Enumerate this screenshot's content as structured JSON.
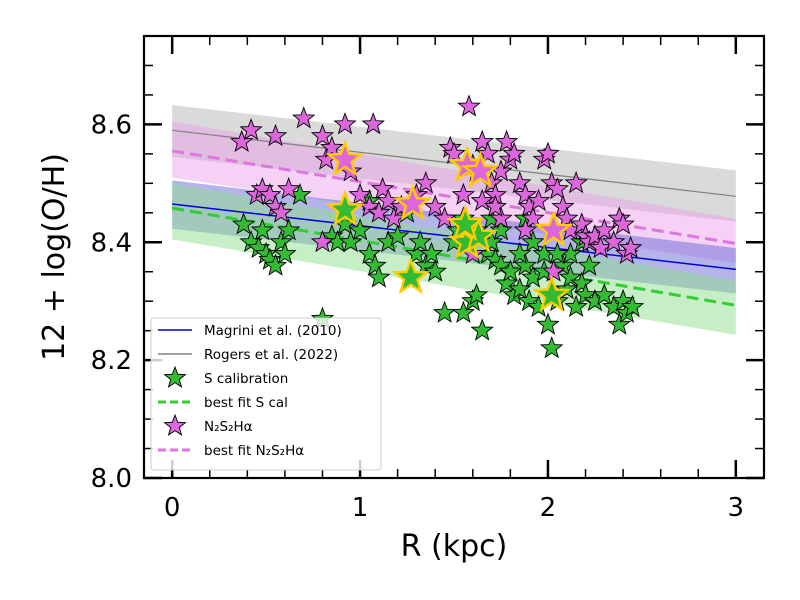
{
  "chart_data": {
    "type": "scatter",
    "xlabel": "R (kpc)",
    "ylabel": "12 + log(O/H)",
    "xlim": [
      -0.15,
      3.15
    ],
    "ylim": [
      8.0,
      8.75
    ],
    "xticks": [
      0,
      1,
      2,
      3
    ],
    "xtick_labels": [
      "0",
      "1",
      "2",
      "3"
    ],
    "yticks": [
      8.0,
      8.2,
      8.4,
      8.6
    ],
    "ytick_labels": [
      "8.0",
      "8.2",
      "8.4",
      "8.6"
    ],
    "grid": false,
    "legend_position": "lower-left",
    "bands": [
      {
        "series": "Rogers et al. (2022)",
        "x": [
          0,
          3
        ],
        "lower": [
          8.545,
          8.435
        ],
        "upper": [
          8.633,
          8.522
        ],
        "color": "#bbbbbb",
        "opacity": 0.55
      },
      {
        "series": "best fit N2S2Hα",
        "x": [
          0,
          3
        ],
        "lower": [
          8.51,
          8.365
        ],
        "upper": [
          8.605,
          8.44
        ],
        "color": "#e89be8",
        "opacity": 0.45
      },
      {
        "series": "Magrini et al. (2010)",
        "x": [
          0,
          3
        ],
        "lower": [
          8.423,
          8.313
        ],
        "upper": [
          8.505,
          8.39
        ],
        "color": "#6a6ad8",
        "opacity": 0.5
      },
      {
        "series": "best fit S cal",
        "x": [
          0,
          3
        ],
        "lower": [
          8.405,
          8.243
        ],
        "upper": [
          8.5,
          8.335
        ],
        "color": "#8ee08e",
        "opacity": 0.5
      }
    ],
    "lines": [
      {
        "name": "Magrini et al. (2010)",
        "x": [
          0,
          3
        ],
        "y": [
          8.465,
          8.354
        ],
        "color": "#0000dd",
        "dash": "solid",
        "width": 1.5
      },
      {
        "name": "Rogers et al. (2022)",
        "x": [
          0,
          3
        ],
        "y": [
          8.59,
          8.478
        ],
        "color": "#808080",
        "dash": "solid",
        "width": 1.2
      },
      {
        "name": "best fit S cal",
        "x": [
          0,
          3
        ],
        "y": [
          8.458,
          8.293
        ],
        "color": "#33cc33",
        "dash": "dashed",
        "width": 3
      },
      {
        "name": "best fit N₂S₂Hα",
        "x": [
          0,
          3
        ],
        "y": [
          8.555,
          8.398
        ],
        "color": "#dd77dd",
        "dash": "dashed",
        "width": 3
      }
    ],
    "series": [
      {
        "name": "S calibration",
        "marker": "star",
        "color": "#33bb33",
        "edge": "#000000",
        "points": [
          [
            0.38,
            8.43
          ],
          [
            0.42,
            8.4
          ],
          [
            0.46,
            8.39
          ],
          [
            0.48,
            8.42
          ],
          [
            0.5,
            8.38
          ],
          [
            0.52,
            8.37
          ],
          [
            0.55,
            8.36
          ],
          [
            0.58,
            8.4
          ],
          [
            0.6,
            8.38
          ],
          [
            0.62,
            8.42
          ],
          [
            0.68,
            8.48
          ],
          [
            0.8,
            8.27
          ],
          [
            0.85,
            8.41
          ],
          [
            0.88,
            8.4
          ],
          [
            0.92,
            8.43
          ],
          [
            0.95,
            8.4
          ],
          [
            1.0,
            8.42
          ],
          [
            1.05,
            8.38
          ],
          [
            1.08,
            8.36
          ],
          [
            1.1,
            8.34
          ],
          [
            1.15,
            8.4
          ],
          [
            1.2,
            8.41
          ],
          [
            1.3,
            8.38
          ],
          [
            1.32,
            8.4
          ],
          [
            1.35,
            8.36
          ],
          [
            1.38,
            8.38
          ],
          [
            1.4,
            8.35
          ],
          [
            1.45,
            8.28
          ],
          [
            1.5,
            8.4
          ],
          [
            1.52,
            8.42
          ],
          [
            1.55,
            8.28
          ],
          [
            1.6,
            8.3
          ],
          [
            1.62,
            8.31
          ],
          [
            1.65,
            8.25
          ],
          [
            1.68,
            8.38
          ],
          [
            1.7,
            8.4
          ],
          [
            1.72,
            8.37
          ],
          [
            1.75,
            8.36
          ],
          [
            1.78,
            8.33
          ],
          [
            1.8,
            8.35
          ],
          [
            1.82,
            8.31
          ],
          [
            1.85,
            8.32
          ],
          [
            1.88,
            8.36
          ],
          [
            1.9,
            8.3
          ],
          [
            1.92,
            8.34
          ],
          [
            1.95,
            8.29
          ],
          [
            1.98,
            8.38
          ],
          [
            2.0,
            8.26
          ],
          [
            2.02,
            8.22
          ],
          [
            2.05,
            8.3
          ],
          [
            2.08,
            8.36
          ],
          [
            2.1,
            8.32
          ],
          [
            2.12,
            8.34
          ],
          [
            2.15,
            8.29
          ],
          [
            2.18,
            8.33
          ],
          [
            2.2,
            8.31
          ],
          [
            2.22,
            8.36
          ],
          [
            2.25,
            8.3
          ],
          [
            2.3,
            8.31
          ],
          [
            2.35,
            8.29
          ],
          [
            2.38,
            8.26
          ],
          [
            2.4,
            8.3
          ],
          [
            2.42,
            8.28
          ],
          [
            2.45,
            8.29
          ],
          [
            2.12,
            8.38
          ],
          [
            1.88,
            8.44
          ],
          [
            1.75,
            8.42
          ],
          [
            1.25,
            8.45
          ],
          [
            1.05,
            8.47
          ],
          [
            1.92,
            8.4
          ],
          [
            2.05,
            8.38
          ],
          [
            1.55,
            8.44
          ],
          [
            1.62,
            8.42
          ],
          [
            1.7,
            8.44
          ],
          [
            2.18,
            8.4
          ],
          [
            1.98,
            8.35
          ],
          [
            1.85,
            8.38
          ]
        ],
        "highlighted": [
          [
            0.92,
            8.455
          ],
          [
            1.27,
            8.34
          ],
          [
            1.57,
            8.4
          ],
          [
            1.63,
            8.41
          ],
          [
            1.56,
            8.43
          ],
          [
            2.02,
            8.31
          ]
        ]
      },
      {
        "name": "N₂S₂Hα",
        "marker": "star",
        "color": "#dd66dd",
        "edge": "#000000",
        "points": [
          [
            0.37,
            8.57
          ],
          [
            0.42,
            8.59
          ],
          [
            0.45,
            8.48
          ],
          [
            0.48,
            8.49
          ],
          [
            0.52,
            8.48
          ],
          [
            0.55,
            8.58
          ],
          [
            0.55,
            8.46
          ],
          [
            0.58,
            8.45
          ],
          [
            0.62,
            8.49
          ],
          [
            0.7,
            8.61
          ],
          [
            0.8,
            8.58
          ],
          [
            0.82,
            8.54
          ],
          [
            0.85,
            8.56
          ],
          [
            0.8,
            8.4
          ],
          [
            0.92,
            8.6
          ],
          [
            0.95,
            8.52
          ],
          [
            1.0,
            8.48
          ],
          [
            1.05,
            8.46
          ],
          [
            1.07,
            8.6
          ],
          [
            1.1,
            8.45
          ],
          [
            1.12,
            8.49
          ],
          [
            1.15,
            8.47
          ],
          [
            1.18,
            8.44
          ],
          [
            1.22,
            8.46
          ],
          [
            1.3,
            8.48
          ],
          [
            1.35,
            8.5
          ],
          [
            1.4,
            8.46
          ],
          [
            1.45,
            8.44
          ],
          [
            1.48,
            8.56
          ],
          [
            1.5,
            8.55
          ],
          [
            1.58,
            8.63
          ],
          [
            1.6,
            8.53
          ],
          [
            1.62,
            8.52
          ],
          [
            1.65,
            8.57
          ],
          [
            1.68,
            8.55
          ],
          [
            1.7,
            8.5
          ],
          [
            1.72,
            8.48
          ],
          [
            1.75,
            8.52
          ],
          [
            1.78,
            8.57
          ],
          [
            1.8,
            8.54
          ],
          [
            1.82,
            8.55
          ],
          [
            1.85,
            8.5
          ],
          [
            1.88,
            8.48
          ],
          [
            1.9,
            8.46
          ],
          [
            1.92,
            8.44
          ],
          [
            1.95,
            8.47
          ],
          [
            1.98,
            8.54
          ],
          [
            2.0,
            8.55
          ],
          [
            2.02,
            8.5
          ],
          [
            2.05,
            8.49
          ],
          [
            2.08,
            8.46
          ],
          [
            2.1,
            8.44
          ],
          [
            2.12,
            8.42
          ],
          [
            2.15,
            8.5
          ],
          [
            2.18,
            8.43
          ],
          [
            2.2,
            8.41
          ],
          [
            2.22,
            8.4
          ],
          [
            2.25,
            8.41
          ],
          [
            2.28,
            8.39
          ],
          [
            2.3,
            8.42
          ],
          [
            2.35,
            8.4
          ],
          [
            2.38,
            8.44
          ],
          [
            2.4,
            8.43
          ],
          [
            2.42,
            8.38
          ],
          [
            2.44,
            8.39
          ],
          [
            1.55,
            8.48
          ],
          [
            1.65,
            8.47
          ],
          [
            1.75,
            8.44
          ],
          [
            2.03,
            8.35
          ],
          [
            1.88,
            8.42
          ],
          [
            1.6,
            8.38
          ],
          [
            1.72,
            8.46
          ]
        ],
        "highlighted": [
          [
            0.92,
            8.54
          ],
          [
            1.28,
            8.465
          ],
          [
            1.57,
            8.53
          ],
          [
            1.64,
            8.52
          ],
          [
            2.03,
            8.42
          ]
        ]
      }
    ],
    "legend": [
      {
        "label": "Magrini et al. (2010)",
        "kind": "line",
        "color": "#0000dd",
        "dash": "solid"
      },
      {
        "label": "Rogers et al. (2022)",
        "kind": "line",
        "color": "#808080",
        "dash": "solid"
      },
      {
        "label": "S calibration",
        "kind": "star",
        "color": "#33bb33"
      },
      {
        "label": "best fit S cal",
        "kind": "line",
        "color": "#33cc33",
        "dash": "dashed"
      },
      {
        "label": "N₂S₂Hα",
        "kind": "star",
        "color": "#dd66dd"
      },
      {
        "label": "best fit N₂S₂Hα",
        "kind": "line",
        "color": "#dd77dd",
        "dash": "dashed"
      }
    ],
    "highlight_color": "#ffcc00"
  }
}
